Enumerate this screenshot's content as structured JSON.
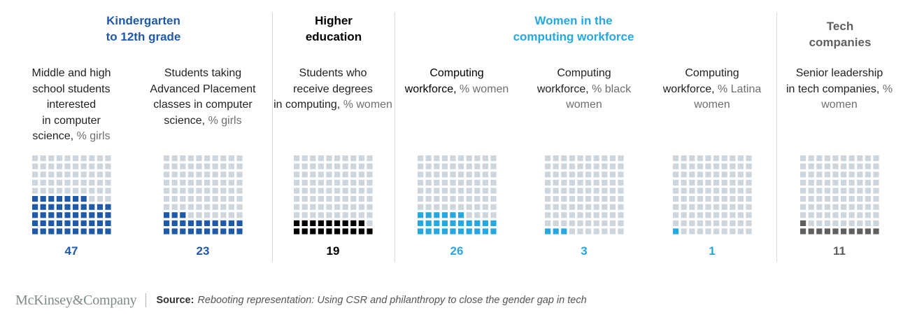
{
  "colors": {
    "empty": "#cdd6dd",
    "k12": "#1f5aa8",
    "higher_ed": "#000000",
    "workforce": "#27a7e0",
    "tech": "#5f5f5f",
    "unit_text": "#6e6e6e"
  },
  "groups": [
    {
      "id": "k12",
      "title": "Kindergarten\nto 12th grade",
      "color": "#1f5aa8"
    },
    {
      "id": "higher_ed",
      "title": "Higher\neducation",
      "color": "#000000"
    },
    {
      "id": "workforce",
      "title": "Women in the\ncomputing workforce",
      "color": "#27a7e0"
    },
    {
      "id": "tech",
      "title": "Tech\ncompanies",
      "color": "#5f5f5f"
    }
  ],
  "chart_data": {
    "type": "waffle",
    "grid": {
      "rows": 10,
      "cols": 10,
      "fill_order": "bottom-left, row by row"
    },
    "unit": "percent",
    "panels": [
      {
        "group": "k12",
        "description": "Middle and high\nschool students\ninterested\nin computer\nscience,",
        "unit_label": "% girls",
        "value": 47,
        "value_label": "47"
      },
      {
        "group": "k12",
        "description": "Students taking\nAdvanced Placement\nclasses in computer\nscience,",
        "unit_label": "% girls",
        "value": 23,
        "value_label": "23"
      },
      {
        "group": "higher_ed",
        "description": "Students who\nreceive degrees\nin computing,",
        "unit_label": "% women",
        "value": 19,
        "value_label": "19"
      },
      {
        "group": "workforce",
        "description": "Computing\nworkforce,",
        "unit_label": "% women",
        "value": 26,
        "value_label": "26"
      },
      {
        "group": "workforce",
        "description": "Computing\nworkforce,",
        "unit_label": "% black\nwomen",
        "value": 3,
        "value_label": "3"
      },
      {
        "group": "workforce",
        "description": "Computing\nworkforce,",
        "unit_label": "% Latina\nwomen",
        "value": 1,
        "value_label": "1"
      },
      {
        "group": "tech",
        "description": "Senior leadership\nin tech companies,",
        "unit_label": "% women",
        "value": 11,
        "value_label": "11"
      }
    ]
  },
  "footer": {
    "brand": "McKinsey&Company",
    "source_label": "Source:",
    "source_text": "Rebooting representation: Using CSR and philanthropy to close the gender gap in tech"
  }
}
